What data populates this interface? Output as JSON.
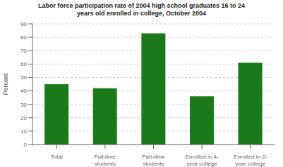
{
  "chart_data": {
    "type": "bar",
    "title": "Labor force participation rate of 2004 high school graduates 16 to 24\nyears old enrolled in college, October 2004",
    "categories": [
      "Total",
      "Full-time\nstudents",
      "Part-time\nstudents",
      "Enrolled in 4-\nyear college",
      "Enrolled in 2-\nyear college"
    ],
    "values": [
      45,
      42,
      83,
      36,
      61
    ],
    "color": "#1a7a1a",
    "ylabel": "Percent",
    "ylim": [
      0,
      90
    ],
    "yticks": [
      0,
      10,
      20,
      30,
      40,
      50,
      60,
      70,
      80,
      90
    ],
    "grid": true
  }
}
